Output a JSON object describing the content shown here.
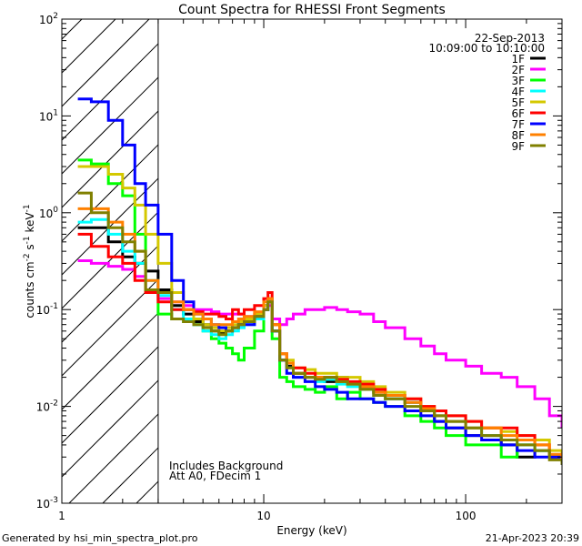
{
  "chart_data": {
    "type": "line",
    "title": "Count Spectra for RHESSI Front Segments",
    "xlabel": "Energy (keV)",
    "ylabel": "counts cm",
    "ylabel_parts": {
      "a": "counts cm",
      "b": "-2",
      "c": " s",
      "d": "-1",
      "e": " keV",
      "f": "-1"
    },
    "xscale": "log",
    "yscale": "log",
    "xlim": [
      1,
      300
    ],
    "ylim": [
      0.001,
      100
    ],
    "x_ticks": [
      {
        "v": 1,
        "label": "1"
      },
      {
        "v": 10,
        "label": "10"
      },
      {
        "v": 100,
        "label": "100"
      }
    ],
    "y_ticks": [
      {
        "v": 0.001,
        "base": "10",
        "exp": "-3"
      },
      {
        "v": 0.01,
        "base": "10",
        "exp": "-2"
      },
      {
        "v": 0.1,
        "base": "10",
        "exp": "-1"
      },
      {
        "v": 1,
        "base": "10",
        "exp": "0"
      },
      {
        "v": 10,
        "base": "10",
        "exp": "1"
      },
      {
        "v": 100,
        "base": "10",
        "exp": "2"
      }
    ],
    "excluded_region_keV": [
      1,
      3
    ],
    "date": "22-Sep-2013",
    "time_range": "10:09:00 to 10:10:00",
    "annotations": [
      "Includes Background",
      "Att A0, FDecim 1"
    ],
    "legend_position": "top-right",
    "energy": [
      1.2,
      1.4,
      1.7,
      2.0,
      2.3,
      2.6,
      3.0,
      3.5,
      4,
      4.5,
      5,
      5.5,
      6,
      6.5,
      7,
      7.5,
      8,
      9,
      10,
      10.5,
      11,
      12,
      13,
      14,
      16,
      18,
      20,
      23,
      26,
      30,
      35,
      40,
      50,
      60,
      70,
      80,
      100,
      120,
      150,
      180,
      220,
      260,
      300
    ],
    "series": [
      {
        "name": "1F",
        "color": "#000000",
        "values": [
          0.7,
          0.7,
          0.5,
          0.35,
          0.3,
          0.25,
          0.16,
          0.11,
          0.09,
          0.075,
          0.07,
          0.06,
          0.058,
          0.06,
          0.065,
          0.07,
          0.075,
          0.085,
          0.11,
          0.13,
          0.06,
          0.03,
          0.026,
          0.022,
          0.02,
          0.019,
          0.018,
          0.02,
          0.017,
          0.016,
          0.014,
          0.012,
          0.011,
          0.009,
          0.007,
          0.006,
          0.005,
          0.005,
          0.004,
          0.003,
          0.0035,
          0.003,
          0.0025
        ]
      },
      {
        "name": "2F",
        "color": "#ff00ff",
        "values": [
          0.32,
          0.3,
          0.28,
          0.26,
          0.22,
          0.16,
          0.13,
          0.12,
          0.11,
          0.1,
          0.1,
          0.095,
          0.09,
          0.09,
          0.09,
          0.09,
          0.085,
          0.09,
          0.1,
          0.11,
          0.08,
          0.07,
          0.08,
          0.09,
          0.1,
          0.1,
          0.105,
          0.1,
          0.095,
          0.09,
          0.075,
          0.065,
          0.05,
          0.042,
          0.035,
          0.03,
          0.026,
          0.022,
          0.02,
          0.016,
          0.012,
          0.008,
          0.006
        ]
      },
      {
        "name": "3F",
        "color": "#00ff00",
        "values": [
          3.5,
          3.2,
          2.0,
          1.5,
          0.6,
          0.15,
          0.09,
          0.08,
          0.075,
          0.07,
          0.06,
          0.05,
          0.045,
          0.04,
          0.035,
          0.03,
          0.04,
          0.06,
          0.1,
          0.12,
          0.05,
          0.02,
          0.018,
          0.016,
          0.015,
          0.014,
          0.016,
          0.012,
          0.014,
          0.012,
          0.011,
          0.01,
          0.008,
          0.007,
          0.006,
          0.005,
          0.004,
          0.004,
          0.003,
          0.004,
          0.0035,
          0.003,
          0.0028
        ]
      },
      {
        "name": "4F",
        "color": "#00ffff",
        "values": [
          0.8,
          0.85,
          0.6,
          0.4,
          0.3,
          0.2,
          0.14,
          0.1,
          0.08,
          0.07,
          0.06,
          0.055,
          0.05,
          0.055,
          0.06,
          0.065,
          0.07,
          0.08,
          0.1,
          0.12,
          0.06,
          0.03,
          0.025,
          0.02,
          0.02,
          0.018,
          0.019,
          0.017,
          0.016,
          0.015,
          0.013,
          0.012,
          0.011,
          0.009,
          0.008,
          0.007,
          0.006,
          0.005,
          0.0045,
          0.004,
          0.0035,
          0.003,
          0.0028
        ]
      },
      {
        "name": "5F",
        "color": "#d4c800",
        "values": [
          3.0,
          3.0,
          2.5,
          1.8,
          1.2,
          0.6,
          0.3,
          0.15,
          0.1,
          0.08,
          0.07,
          0.065,
          0.06,
          0.065,
          0.07,
          0.075,
          0.08,
          0.09,
          0.11,
          0.13,
          0.07,
          0.035,
          0.03,
          0.025,
          0.024,
          0.022,
          0.022,
          0.02,
          0.02,
          0.018,
          0.016,
          0.014,
          0.012,
          0.01,
          0.009,
          0.008,
          0.007,
          0.006,
          0.0055,
          0.005,
          0.0045,
          0.0035,
          0.003
        ]
      },
      {
        "name": "6F",
        "color": "#ff0000",
        "values": [
          0.6,
          0.45,
          0.35,
          0.3,
          0.2,
          0.15,
          0.12,
          0.1,
          0.1,
          0.095,
          0.09,
          0.09,
          0.085,
          0.08,
          0.1,
          0.09,
          0.1,
          0.11,
          0.13,
          0.15,
          0.07,
          0.035,
          0.028,
          0.025,
          0.022,
          0.02,
          0.02,
          0.019,
          0.018,
          0.017,
          0.015,
          0.013,
          0.012,
          0.01,
          0.009,
          0.008,
          0.007,
          0.006,
          0.006,
          0.005,
          0.004,
          0.003,
          0.0028
        ]
      },
      {
        "name": "7F",
        "color": "#0000ff",
        "values": [
          15,
          14,
          9,
          5,
          2,
          1.2,
          0.6,
          0.2,
          0.12,
          0.09,
          0.08,
          0.07,
          0.065,
          0.06,
          0.065,
          0.07,
          0.07,
          0.085,
          0.1,
          0.12,
          0.06,
          0.03,
          0.022,
          0.02,
          0.018,
          0.016,
          0.015,
          0.014,
          0.012,
          0.012,
          0.011,
          0.01,
          0.009,
          0.008,
          0.007,
          0.006,
          0.005,
          0.0045,
          0.004,
          0.0035,
          0.003,
          0.003,
          0.0025
        ]
      },
      {
        "name": "8F",
        "color": "#ff8000",
        "values": [
          1.1,
          1.1,
          0.8,
          0.6,
          0.4,
          0.2,
          0.15,
          0.12,
          0.1,
          0.09,
          0.08,
          0.07,
          0.07,
          0.07,
          0.075,
          0.08,
          0.085,
          0.095,
          0.12,
          0.13,
          0.07,
          0.035,
          0.028,
          0.022,
          0.02,
          0.02,
          0.02,
          0.018,
          0.017,
          0.016,
          0.014,
          0.013,
          0.011,
          0.0095,
          0.008,
          0.007,
          0.006,
          0.006,
          0.005,
          0.0045,
          0.004,
          0.0032,
          0.0028
        ]
      },
      {
        "name": "9F",
        "color": "#808000",
        "values": [
          1.6,
          1.0,
          0.7,
          0.5,
          0.4,
          0.16,
          0.15,
          0.08,
          0.075,
          0.07,
          0.065,
          0.06,
          0.055,
          0.06,
          0.065,
          0.07,
          0.075,
          0.085,
          0.1,
          0.12,
          0.06,
          0.03,
          0.025,
          0.022,
          0.02,
          0.019,
          0.02,
          0.018,
          0.017,
          0.015,
          0.013,
          0.012,
          0.01,
          0.009,
          0.008,
          0.007,
          0.006,
          0.005,
          0.0045,
          0.004,
          0.0035,
          0.0028,
          0.0025
        ]
      }
    ]
  },
  "footer": {
    "generated_by": "Generated by hsi_min_spectra_plot.pro",
    "timestamp": "21-Apr-2023 20:39"
  }
}
